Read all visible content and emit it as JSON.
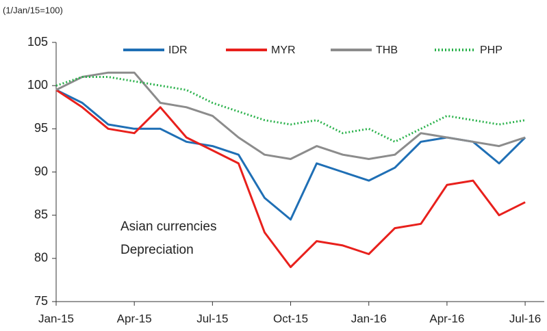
{
  "chart_data": {
    "type": "line",
    "unit_label": "(1/Jan/15=100)",
    "annotations": [
      "Asian currencies",
      "Depreciation"
    ],
    "x": [
      "Jan-15",
      null,
      null,
      "Apr-15",
      null,
      null,
      "Jul-15",
      null,
      null,
      "Oct-15",
      null,
      null,
      "Jan-16",
      null,
      null,
      "Apr-16",
      null,
      null,
      "Jul-16"
    ],
    "ylim": [
      75,
      105
    ],
    "yticks": [
      75,
      80,
      85,
      90,
      95,
      100,
      105
    ],
    "grid": false,
    "legend": "top",
    "series": [
      {
        "name": "IDR",
        "color": "#1f6fb5",
        "values": [
          99.5,
          98,
          95.5,
          95,
          95,
          93.5,
          93,
          92,
          87,
          84.5,
          91,
          90,
          89,
          90.5,
          93.5,
          94,
          93.5,
          91,
          94
        ]
      },
      {
        "name": "MYR",
        "color": "#e8201c",
        "values": [
          99.5,
          97.5,
          95,
          94.5,
          97.5,
          94,
          92.5,
          91,
          83,
          79,
          82,
          81.5,
          80.5,
          83.5,
          84,
          88.5,
          89,
          85,
          86.5
        ]
      },
      {
        "name": "THB",
        "color": "#8c8c8c",
        "values": [
          99.5,
          101,
          101.5,
          101.5,
          98,
          97.5,
          96.5,
          94,
          92,
          91.5,
          93,
          92,
          91.5,
          92,
          94.5,
          94,
          93.5,
          93,
          94
        ]
      },
      {
        "name": "PHP",
        "color": "#2bb24c",
        "dotted": true,
        "values": [
          100,
          101,
          101,
          100.5,
          100,
          99.5,
          98,
          97,
          96,
          95.5,
          96,
          94.5,
          95,
          93.5,
          95,
          96.5,
          96,
          95.5,
          96
        ]
      }
    ]
  }
}
